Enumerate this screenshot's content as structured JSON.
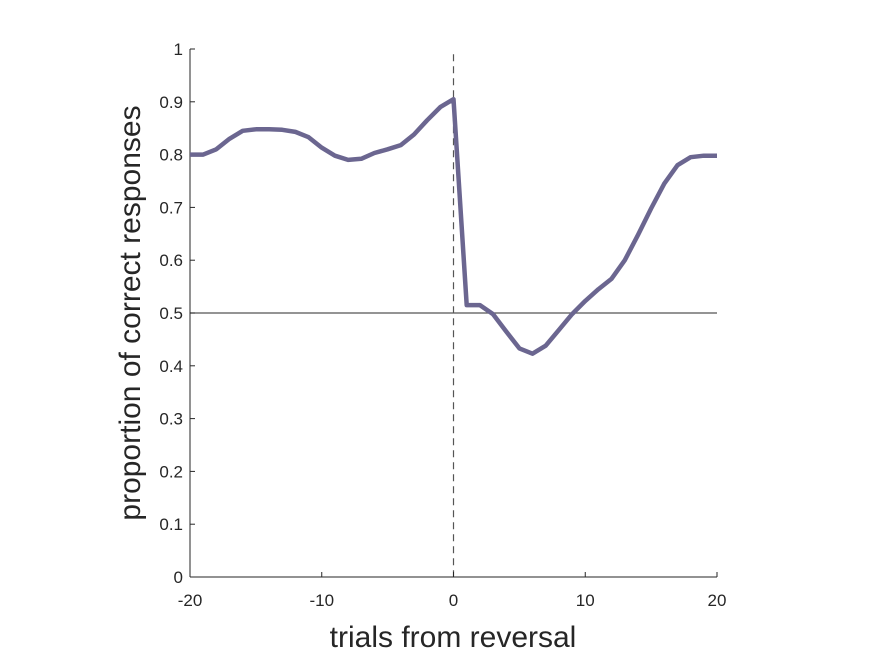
{
  "chart_data": {
    "type": "line",
    "xlabel": "trials from reversal",
    "ylabel": "proportion of correct responses",
    "xlim": [
      -20,
      20
    ],
    "ylim": [
      0,
      1
    ],
    "xticks": [
      "-20",
      "-10",
      "0",
      "10",
      "20"
    ],
    "yticks": [
      "0",
      "0.1",
      "0.2",
      "0.3",
      "0.4",
      "0.5",
      "0.6",
      "0.7",
      "0.8",
      "0.9",
      "1"
    ],
    "grid": false,
    "reference_lines": {
      "horizontal_y": 0.5,
      "vertical_x": 0
    },
    "colors": {
      "line": "#6b6690",
      "axis": "#262626",
      "reference": "#555555"
    },
    "series": [
      {
        "x": [
          -20,
          -19,
          -18,
          -17,
          -16,
          -15,
          -14,
          -13,
          -12,
          -11,
          -10,
          -9,
          -8,
          -7,
          -6,
          -5,
          -4,
          -3,
          -2,
          -1,
          0,
          1,
          2,
          3,
          4,
          5,
          6,
          7,
          8,
          9,
          10,
          11,
          12,
          13,
          14,
          15,
          16,
          17,
          18,
          19,
          20
        ],
        "y": [
          0.8,
          0.8,
          0.81,
          0.83,
          0.845,
          0.848,
          0.848,
          0.847,
          0.843,
          0.833,
          0.813,
          0.798,
          0.79,
          0.792,
          0.803,
          0.81,
          0.818,
          0.838,
          0.865,
          0.89,
          0.905,
          0.515,
          0.515,
          0.498,
          0.465,
          0.433,
          0.423,
          0.438,
          0.468,
          0.498,
          0.523,
          0.545,
          0.565,
          0.6,
          0.648,
          0.698,
          0.745,
          0.78,
          0.795,
          0.798,
          0.798
        ]
      }
    ]
  }
}
